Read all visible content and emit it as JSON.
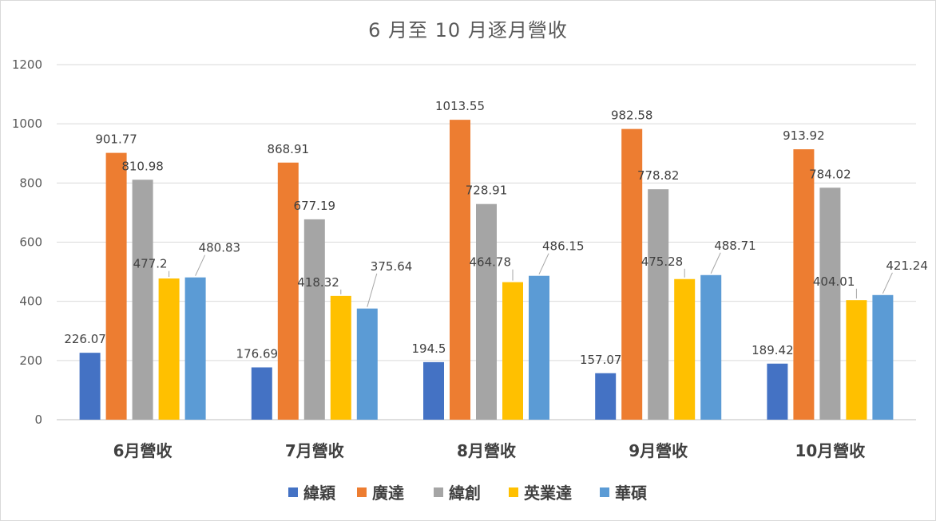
{
  "chart_data": {
    "type": "bar",
    "title": "6 月至 10 月逐月營收",
    "categories": [
      "6月營收",
      "7月營收",
      "8月營收",
      "9月營收",
      "10月營收"
    ],
    "series": [
      {
        "name": "緯穎",
        "color": "#4472C4",
        "values": [
          226.07,
          176.69,
          194.5,
          157.07,
          189.42
        ]
      },
      {
        "name": "廣達",
        "color": "#ED7D31",
        "values": [
          901.77,
          868.91,
          1013.55,
          982.58,
          913.92
        ]
      },
      {
        "name": "緯創",
        "color": "#A5A5A5",
        "values": [
          810.98,
          677.19,
          728.91,
          778.82,
          784.02
        ]
      },
      {
        "name": "英業達",
        "color": "#FFC000",
        "values": [
          477.2,
          418.32,
          464.78,
          475.28,
          404.01
        ]
      },
      {
        "name": "華碩",
        "color": "#5B9BD5",
        "values": [
          480.83,
          375.64,
          486.15,
          488.71,
          421.24
        ]
      }
    ],
    "ylim": [
      0,
      1200
    ],
    "yticks": [
      "0",
      "200",
      "400",
      "600",
      "800",
      "1000",
      "1200"
    ],
    "grid": true,
    "legend_position": "bottom"
  }
}
